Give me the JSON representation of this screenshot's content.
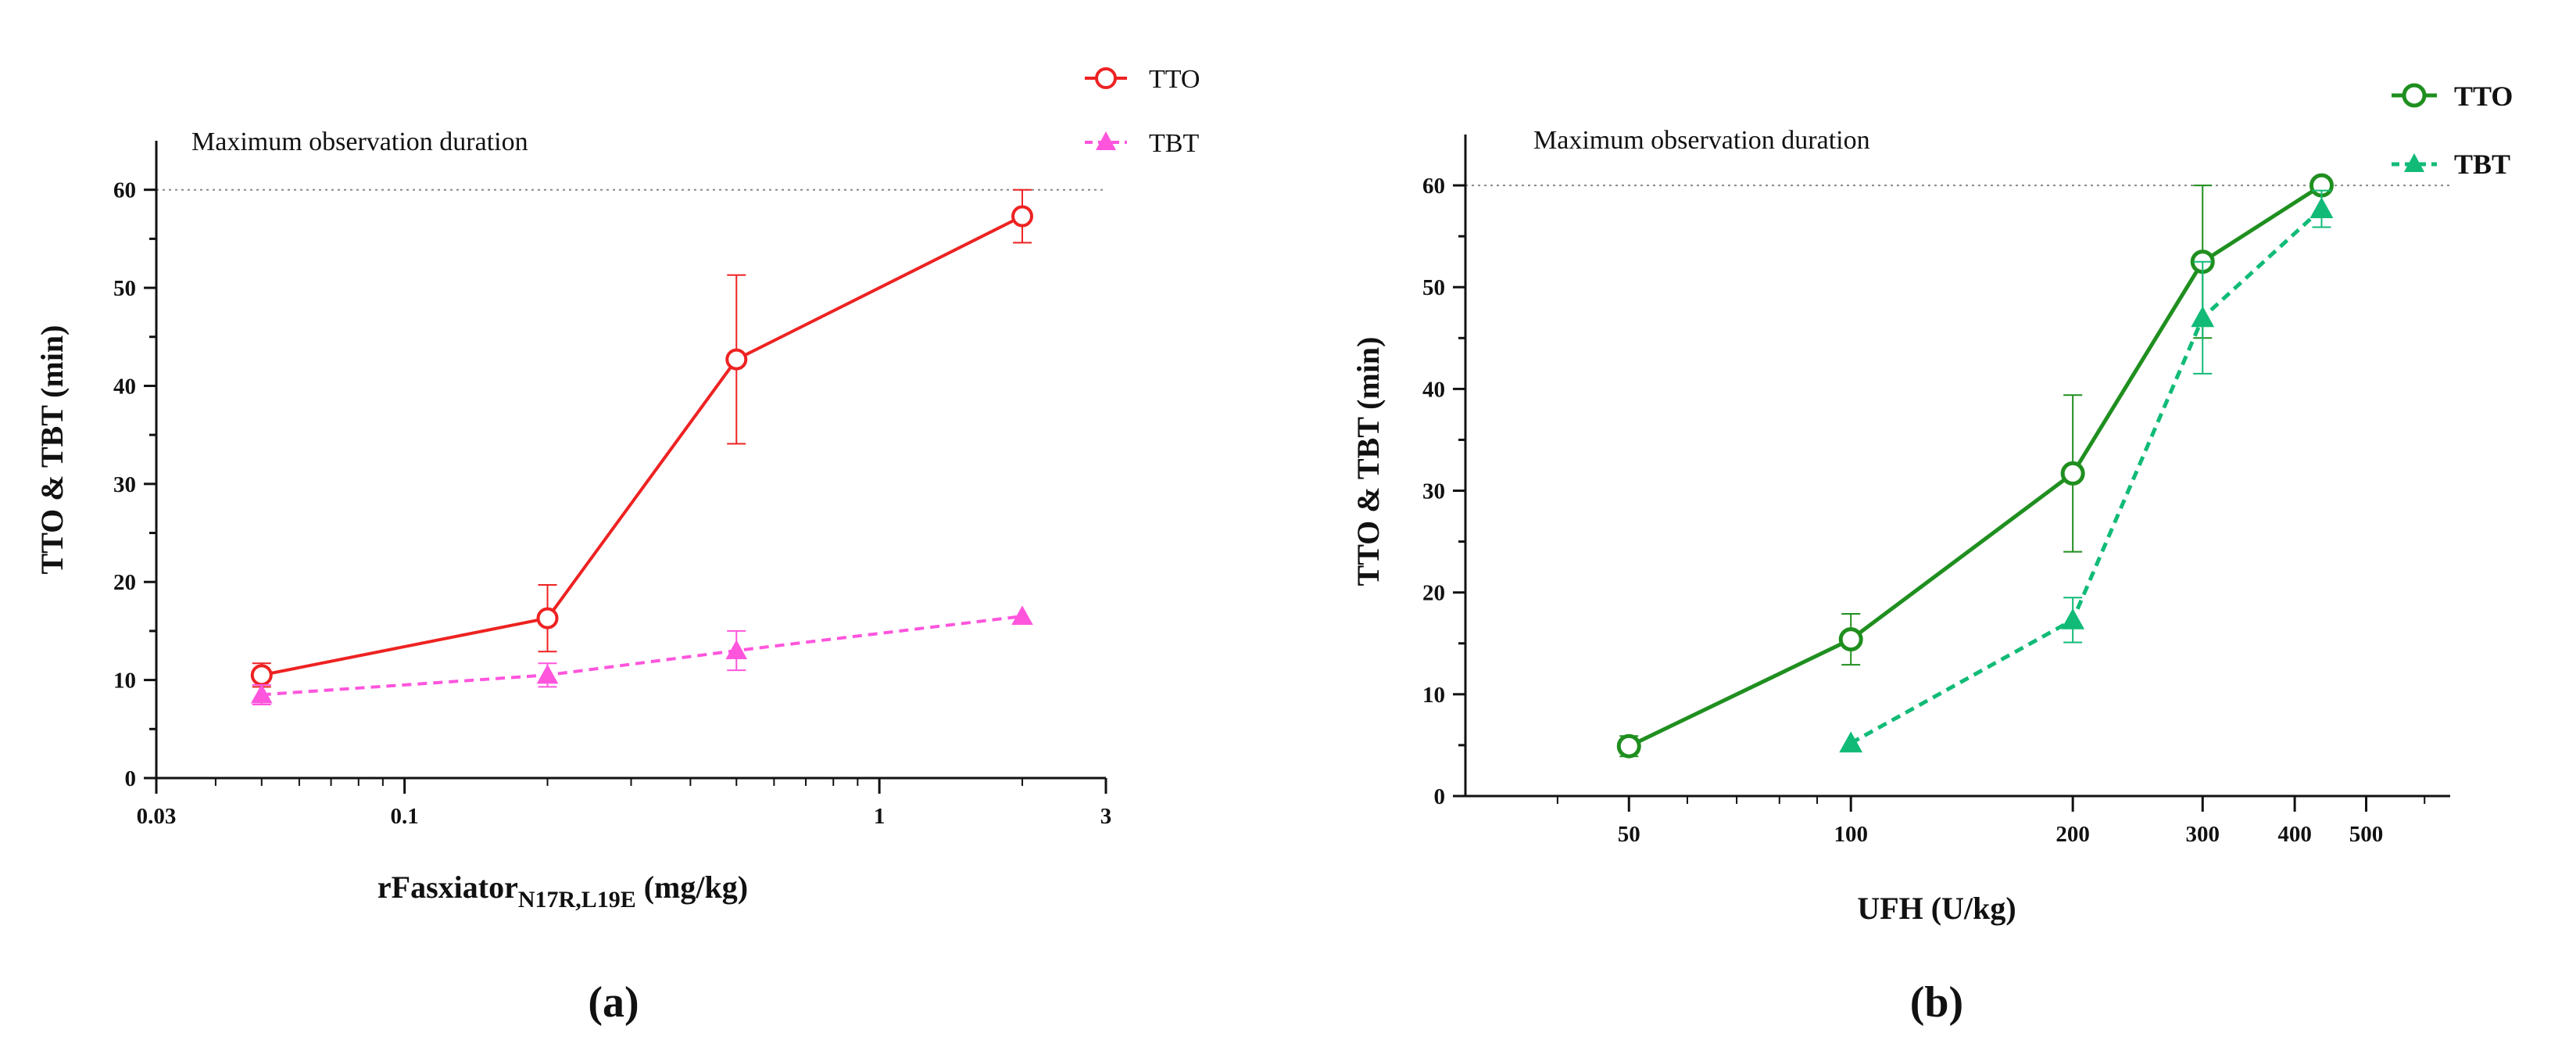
{
  "chart_data": [
    {
      "type": "line",
      "panel_label": "(a)",
      "title": "",
      "xlabel": "rFasxiator",
      "xlabel_subscript": "N17R,L19E",
      "xlabel_unit": " (mg/kg)",
      "ylabel": "TTO & TBT (min)",
      "xscale": "log",
      "xlim": [
        0.03,
        3
      ],
      "ylim": [
        0,
        65
      ],
      "xticks": [
        0.03,
        0.1,
        1,
        3
      ],
      "xtick_labels": [
        "0.03",
        "0.1",
        "1",
        "3"
      ],
      "yticks": [
        0,
        10,
        20,
        30,
        40,
        50,
        60
      ],
      "ytick_labels": [
        "0",
        "10",
        "20",
        "30",
        "40",
        "50",
        "60"
      ],
      "reference_line": {
        "y": 60,
        "label": "Maximum observation duration"
      },
      "legend_position": "top-right",
      "series": [
        {
          "name": "TTO",
          "color": "#ee2222",
          "marker": "open-circle",
          "line": "solid",
          "x": [
            0.05,
            0.2,
            0.5,
            2
          ],
          "y": [
            10.5,
            16.3,
            42.7,
            57.3
          ],
          "err": [
            1.2,
            3.4,
            8.6,
            2.7
          ]
        },
        {
          "name": "TBT",
          "color": "#ff55dd",
          "marker": "filled-triangle",
          "line": "dashed",
          "x": [
            0.05,
            0.2,
            0.5,
            2
          ],
          "y": [
            8.5,
            10.5,
            13.0,
            16.5
          ],
          "err": [
            1.0,
            1.2,
            2.0,
            0
          ]
        }
      ]
    },
    {
      "type": "line",
      "panel_label": "(b)",
      "title": "",
      "xlabel": "UFH (U/kg)",
      "ylabel": "TTO  & TBT (min)",
      "xscale": "log",
      "xlim": [
        30,
        650
      ],
      "ylim": [
        0,
        65
      ],
      "xticks": [
        50,
        100,
        200,
        300,
        400,
        500
      ],
      "xtick_labels": [
        "50",
        "100",
        "200",
        "300",
        "400",
        "500"
      ],
      "yticks": [
        0,
        10,
        20,
        30,
        40,
        50,
        60
      ],
      "ytick_labels": [
        "0",
        "10",
        "20",
        "30",
        "40",
        "50",
        "60"
      ],
      "reference_line": {
        "y": 60,
        "label": "Maximum observation duration"
      },
      "legend_position": "top-right",
      "series": [
        {
          "name": "TTO",
          "color": "#1f8f1f",
          "marker": "open-circle",
          "line": "solid",
          "x": [
            50,
            100,
            200,
            300,
            435
          ],
          "y": [
            4.9,
            15.4,
            31.7,
            52.5,
            60
          ],
          "err": [
            1.0,
            2.5,
            7.7,
            7.5,
            0
          ]
        },
        {
          "name": "TBT",
          "color": "#11bb77",
          "marker": "filled-triangle",
          "line": "dashed",
          "x": [
            100,
            200,
            300,
            435
          ],
          "y": [
            5.2,
            17.3,
            47.0,
            57.7
          ],
          "err": [
            0,
            2.2,
            5.5,
            1.8
          ]
        }
      ]
    }
  ]
}
